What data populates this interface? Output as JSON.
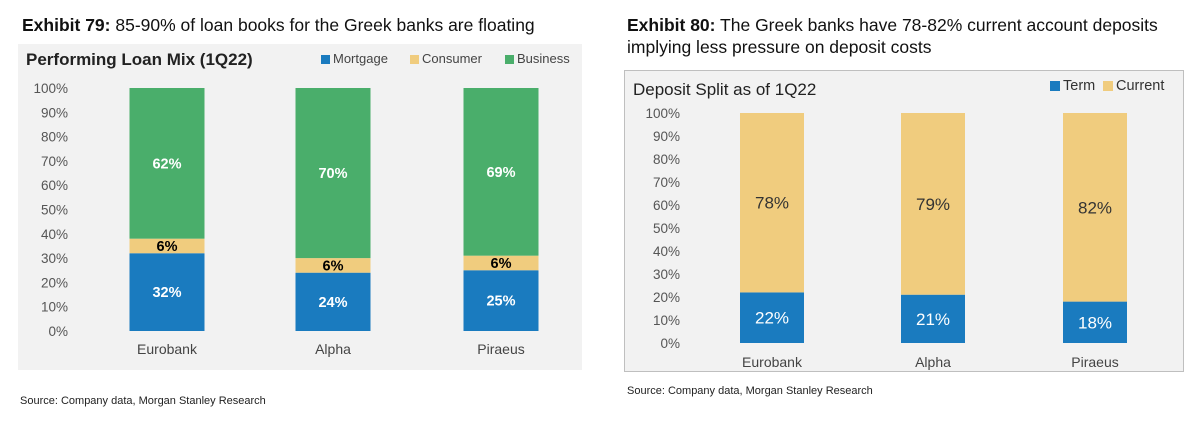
{
  "exhibit79": {
    "label": "Exhibit 79:",
    "heading": "85-90% of loan books for the Greek banks are floating",
    "source": "Source: Company data, Morgan Stanley Research"
  },
  "exhibit80": {
    "label": "Exhibit 80:",
    "heading": "The Greek banks have 78-82% current account deposits implying less pressure on deposit costs",
    "source": "Source: Company data, Morgan Stanley Research"
  },
  "chart_data": [
    {
      "type": "bar",
      "stacked": true,
      "title": "Performing Loan Mix (1Q22)",
      "categories": [
        "Eurobank",
        "Alpha",
        "Piraeus"
      ],
      "series": [
        {
          "name": "Mortgage",
          "values": [
            32,
            24,
            25
          ],
          "color": "#1a7bbf",
          "label_color": "#ffffff"
        },
        {
          "name": "Consumer",
          "values": [
            6,
            6,
            6
          ],
          "color": "#f0cc7e",
          "label_color": "#000000"
        },
        {
          "name": "Business",
          "values": [
            62,
            70,
            69
          ],
          "color": "#4aae6b",
          "label_color": "#ffffff"
        }
      ],
      "data_labels": [
        [
          "32%",
          "24%",
          "25%"
        ],
        [
          "6%",
          "6%",
          "6%"
        ],
        [
          "62%",
          "70%",
          "69%"
        ]
      ],
      "y_ticks": [
        "0%",
        "10%",
        "20%",
        "30%",
        "40%",
        "50%",
        "60%",
        "70%",
        "80%",
        "90%",
        "100%"
      ],
      "ylim": [
        0,
        100
      ],
      "xlabel": "",
      "ylabel": "",
      "grid": false,
      "legend": "top-right"
    },
    {
      "type": "bar",
      "stacked": true,
      "title": "Deposit Split as of 1Q22",
      "categories": [
        "Eurobank",
        "Alpha",
        "Piraeus"
      ],
      "series": [
        {
          "name": "Term",
          "values": [
            22,
            21,
            18
          ],
          "color": "#1a7bbf",
          "label_color": "#ffffff"
        },
        {
          "name": "Current",
          "values": [
            78,
            79,
            82
          ],
          "color": "#f0cc7e",
          "label_color": "#333333"
        }
      ],
      "data_labels": [
        [
          "22%",
          "21%",
          "18%"
        ],
        [
          "78%",
          "79%",
          "82%"
        ]
      ],
      "y_ticks": [
        "0%",
        "10%",
        "20%",
        "30%",
        "40%",
        "50%",
        "60%",
        "70%",
        "80%",
        "90%",
        "100%"
      ],
      "ylim": [
        0,
        100
      ],
      "xlabel": "",
      "ylabel": "",
      "grid": false,
      "legend": "top-right"
    }
  ]
}
